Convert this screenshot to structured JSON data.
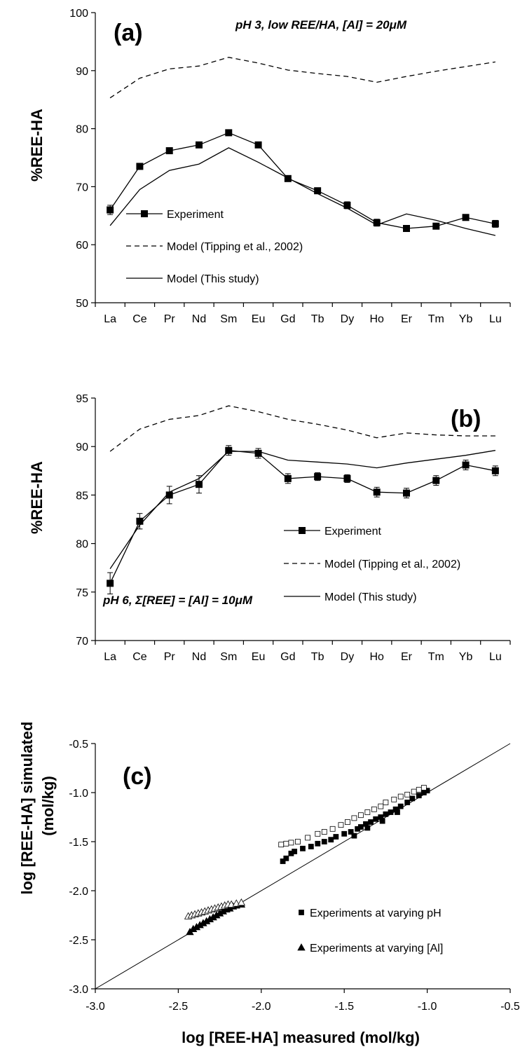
{
  "chart_data": [
    {
      "type": "line",
      "panel_label": "(a)",
      "annotation": "pH 3, low REE/HA, [Al] = 20μM",
      "ylabel": "%REE-HA",
      "xlabel": "",
      "ylim": [
        50,
        100
      ],
      "yticks": [
        50,
        60,
        70,
        80,
        90,
        100
      ],
      "categories": [
        "La",
        "Ce",
        "Pr",
        "Nd",
        "Sm",
        "Eu",
        "Gd",
        "Tb",
        "Dy",
        "Ho",
        "Er",
        "Tm",
        "Yb",
        "Lu"
      ],
      "legend_position": "lower-left",
      "series": [
        {
          "name": "Experiment",
          "style": "line-square",
          "values": [
            66.0,
            73.5,
            76.2,
            77.2,
            79.3,
            77.2,
            71.4,
            69.3,
            66.8,
            63.8,
            62.8,
            63.2,
            64.7,
            63.6
          ],
          "errors": [
            0.8,
            0.5,
            0.5,
            0.4,
            0.5,
            0.5,
            0.5,
            0.5,
            0.6,
            0.6,
            0.5,
            0.4,
            0.5,
            0.6
          ]
        },
        {
          "name": "Model (Tipping et al., 2002)",
          "style": "dashed",
          "values": [
            85.3,
            88.7,
            90.3,
            90.8,
            92.3,
            91.3,
            90.1,
            89.5,
            89.0,
            88.0,
            89.0,
            89.9,
            90.7,
            91.5
          ]
        },
        {
          "name": "Model (This study)",
          "style": "solid",
          "values": [
            63.3,
            69.5,
            72.8,
            73.9,
            76.7,
            74.2,
            71.5,
            68.8,
            66.3,
            63.4,
            65.3,
            64.2,
            62.8,
            61.6
          ]
        }
      ]
    },
    {
      "type": "line",
      "panel_label": "(b)",
      "annotation": "pH 6, Σ[REE] = [Al] = 10μM",
      "ylabel": "%REE-HA",
      "xlabel": "",
      "ylim": [
        70,
        95
      ],
      "yticks": [
        70,
        75,
        80,
        85,
        90,
        95
      ],
      "categories": [
        "La",
        "Ce",
        "Pr",
        "Nd",
        "Sm",
        "Eu",
        "Gd",
        "Tb",
        "Dy",
        "Ho",
        "Er",
        "Tm",
        "Yb",
        "Lu"
      ],
      "legend_position": "center-right",
      "series": [
        {
          "name": "Experiment",
          "style": "line-square",
          "values": [
            75.9,
            82.3,
            85.0,
            86.1,
            89.6,
            89.3,
            86.7,
            86.9,
            86.7,
            85.3,
            85.2,
            86.5,
            88.1,
            87.5
          ],
          "errors": [
            1.1,
            0.8,
            0.9,
            0.9,
            0.5,
            0.5,
            0.5,
            0.4,
            0.4,
            0.5,
            0.5,
            0.5,
            0.5,
            0.5
          ]
        },
        {
          "name": "Model (Tipping et al., 2002)",
          "style": "dashed",
          "values": [
            89.5,
            91.8,
            92.8,
            93.2,
            94.2,
            93.6,
            92.8,
            92.3,
            91.7,
            90.9,
            91.4,
            91.2,
            91.1,
            91.1
          ]
        },
        {
          "name": "Model (This study)",
          "style": "solid",
          "values": [
            77.4,
            81.9,
            85.3,
            86.7,
            89.5,
            89.5,
            88.6,
            88.4,
            88.2,
            87.8,
            88.3,
            88.7,
            89.1,
            89.6
          ]
        }
      ]
    },
    {
      "type": "scatter",
      "panel_label": "(c)",
      "xlabel": "log [REE-HA] measured (mol/kg)",
      "ylabel": "log [REE-HA] simulated\n(mol/kg)",
      "xlim": [
        -3.0,
        -0.5
      ],
      "ylim": [
        -3.0,
        -0.5
      ],
      "xticks": [
        "-3.0",
        "-2.5",
        "-2.0",
        "-1.5",
        "-1.0",
        "-0.5"
      ],
      "yticks": [
        "-3.0",
        "-2.5",
        "-2.0",
        "-1.5",
        "-1.0",
        "-0.5"
      ],
      "reference_line": "1:1",
      "legend_position": "lower-right",
      "legend": [
        {
          "label": "Experiments at varying pH",
          "marker": "square"
        },
        {
          "label": "Experiments at varying [Al]",
          "marker": "triangle"
        }
      ],
      "series": [
        {
          "marker": "square-filled",
          "points": [
            [
              -1.87,
              -1.7
            ],
            [
              -1.85,
              -1.67
            ],
            [
              -1.82,
              -1.62
            ],
            [
              -1.8,
              -1.6
            ],
            [
              -1.75,
              -1.57
            ],
            [
              -1.7,
              -1.55
            ],
            [
              -1.66,
              -1.52
            ],
            [
              -1.62,
              -1.5
            ],
            [
              -1.58,
              -1.48
            ],
            [
              -1.55,
              -1.45
            ],
            [
              -1.5,
              -1.42
            ],
            [
              -1.46,
              -1.4
            ],
            [
              -1.42,
              -1.37
            ],
            [
              -1.4,
              -1.35
            ],
            [
              -1.37,
              -1.32
            ],
            [
              -1.34,
              -1.3
            ],
            [
              -1.31,
              -1.27
            ],
            [
              -1.28,
              -1.25
            ],
            [
              -1.25,
              -1.22
            ],
            [
              -1.22,
              -1.2
            ],
            [
              -1.19,
              -1.17
            ],
            [
              -1.16,
              -1.14
            ],
            [
              -1.12,
              -1.1
            ],
            [
              -1.09,
              -1.06
            ],
            [
              -1.05,
              -1.03
            ],
            [
              -1.02,
              -1.0
            ],
            [
              -1.0,
              -0.98
            ],
            [
              -1.44,
              -1.44
            ],
            [
              -1.36,
              -1.36
            ],
            [
              -1.27,
              -1.29
            ],
            [
              -1.18,
              -1.2
            ]
          ]
        },
        {
          "marker": "square-open",
          "points": [
            [
              -1.88,
              -1.53
            ],
            [
              -1.85,
              -1.52
            ],
            [
              -1.82,
              -1.51
            ],
            [
              -1.78,
              -1.5
            ],
            [
              -1.72,
              -1.46
            ],
            [
              -1.66,
              -1.42
            ],
            [
              -1.62,
              -1.4
            ],
            [
              -1.57,
              -1.37
            ],
            [
              -1.52,
              -1.33
            ],
            [
              -1.48,
              -1.3
            ],
            [
              -1.44,
              -1.26
            ],
            [
              -1.4,
              -1.23
            ],
            [
              -1.36,
              -1.2
            ],
            [
              -1.32,
              -1.17
            ],
            [
              -1.28,
              -1.14
            ],
            [
              -1.25,
              -1.1
            ],
            [
              -1.2,
              -1.07
            ],
            [
              -1.16,
              -1.04
            ],
            [
              -1.12,
              -1.02
            ],
            [
              -1.08,
              -0.99
            ],
            [
              -1.05,
              -0.97
            ],
            [
              -1.02,
              -0.95
            ]
          ]
        },
        {
          "marker": "triangle-filled",
          "points": [
            [
              -2.43,
              -2.42
            ],
            [
              -2.41,
              -2.39
            ],
            [
              -2.39,
              -2.37
            ],
            [
              -2.37,
              -2.35
            ],
            [
              -2.35,
              -2.33
            ],
            [
              -2.33,
              -2.31
            ],
            [
              -2.31,
              -2.29
            ],
            [
              -2.29,
              -2.27
            ],
            [
              -2.27,
              -2.25
            ],
            [
              -2.25,
              -2.23
            ],
            [
              -2.23,
              -2.21
            ],
            [
              -2.21,
              -2.19
            ],
            [
              -2.19,
              -2.18
            ],
            [
              -2.17,
              -2.16
            ],
            [
              -2.15,
              -2.15
            ],
            [
              -2.12,
              -2.14
            ]
          ]
        },
        {
          "marker": "triangle-open",
          "points": [
            [
              -2.44,
              -2.26
            ],
            [
              -2.42,
              -2.25
            ],
            [
              -2.4,
              -2.24
            ],
            [
              -2.38,
              -2.23
            ],
            [
              -2.36,
              -2.22
            ],
            [
              -2.34,
              -2.21
            ],
            [
              -2.32,
              -2.2
            ],
            [
              -2.3,
              -2.19
            ],
            [
              -2.28,
              -2.18
            ],
            [
              -2.26,
              -2.17
            ],
            [
              -2.24,
              -2.16
            ],
            [
              -2.22,
              -2.15
            ],
            [
              -2.2,
              -2.14
            ],
            [
              -2.18,
              -2.14
            ],
            [
              -2.15,
              -2.13
            ],
            [
              -2.12,
              -2.12
            ]
          ]
        }
      ]
    }
  ]
}
